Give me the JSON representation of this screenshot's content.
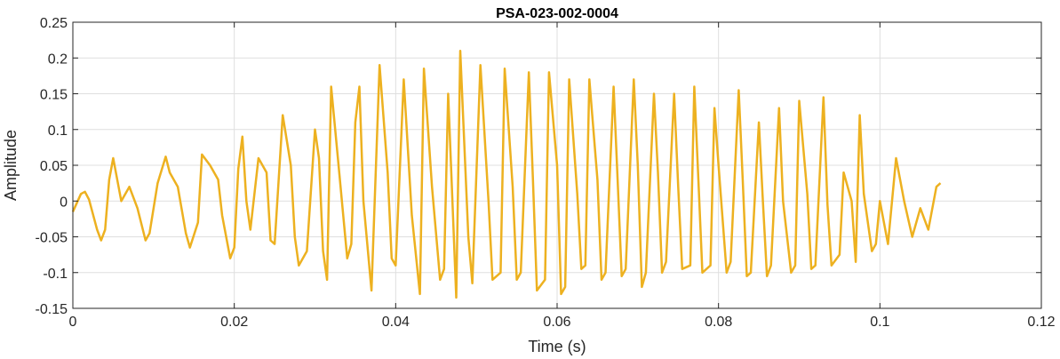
{
  "chart_data": {
    "type": "line",
    "title": "PSA-023-002-0004",
    "xlabel": "Time (s)",
    "ylabel": "Amplitude",
    "xlim": [
      0,
      0.12
    ],
    "ylim": [
      -0.15,
      0.25
    ],
    "grid": true,
    "xticks": [
      0,
      0.02,
      0.04,
      0.06,
      0.08,
      0.1,
      0.12
    ],
    "xtick_labels": [
      "0",
      "0.02",
      "0.04",
      "0.06",
      "0.08",
      "0.1",
      "0.12"
    ],
    "yticks": [
      -0.15,
      -0.1,
      -0.05,
      0,
      0.05,
      0.1,
      0.15,
      0.2,
      0.25
    ],
    "ytick_labels": [
      "-0.15",
      "-0.1",
      "-0.05",
      "0",
      "0.05",
      "0.1",
      "0.15",
      "0.2",
      "0.25"
    ],
    "series": [
      {
        "color": "#EDB120",
        "x": [
          0,
          0.001,
          0.0015,
          0.002,
          0.003,
          0.0035,
          0.004,
          0.0045,
          0.005,
          0.006,
          0.007,
          0.008,
          0.009,
          0.0095,
          0.0105,
          0.0115,
          0.012,
          0.013,
          0.014,
          0.0145,
          0.0155,
          0.016,
          0.017,
          0.018,
          0.0185,
          0.0195,
          0.02,
          0.0205,
          0.021,
          0.0215,
          0.022,
          0.023,
          0.024,
          0.0245,
          0.025,
          0.026,
          0.027,
          0.0275,
          0.028,
          0.029,
          0.03,
          0.0305,
          0.031,
          0.0315,
          0.032,
          0.033,
          0.034,
          0.0345,
          0.035,
          0.0355,
          0.036,
          0.037,
          0.038,
          0.039,
          0.0395,
          0.04,
          0.041,
          0.042,
          0.043,
          0.0435,
          0.0445,
          0.0455,
          0.046,
          0.0465,
          0.0475,
          0.048,
          0.049,
          0.0495,
          0.0505,
          0.0515,
          0.052,
          0.053,
          0.0535,
          0.0545,
          0.055,
          0.0555,
          0.0565,
          0.057,
          0.0575,
          0.0585,
          0.059,
          0.06,
          0.0605,
          0.061,
          0.0615,
          0.0625,
          0.063,
          0.0635,
          0.064,
          0.065,
          0.0655,
          0.066,
          0.067,
          0.0675,
          0.068,
          0.0685,
          0.0695,
          0.07,
          0.0705,
          0.071,
          0.072,
          0.0725,
          0.073,
          0.0735,
          0.0745,
          0.075,
          0.0755,
          0.0765,
          0.077,
          0.0775,
          0.078,
          0.079,
          0.0795,
          0.08,
          0.081,
          0.0815,
          0.0825,
          0.083,
          0.0835,
          0.084,
          0.085,
          0.0855,
          0.086,
          0.0865,
          0.0875,
          0.088,
          0.089,
          0.0895,
          0.09,
          0.091,
          0.0915,
          0.092,
          0.093,
          0.0935,
          0.094,
          0.095,
          0.0955,
          0.0965,
          0.097,
          0.0975,
          0.098,
          0.099,
          0.0995,
          0.1,
          0.101,
          0.102,
          0.103,
          0.104,
          0.105,
          0.106,
          0.107,
          0.1075
        ],
        "y": [
          -0.015,
          0.01,
          0.013,
          0.002,
          -0.04,
          -0.055,
          -0.04,
          0.03,
          0.06,
          0.0,
          0.02,
          -0.01,
          -0.055,
          -0.045,
          0.025,
          0.062,
          0.04,
          0.02,
          -0.045,
          -0.065,
          -0.03,
          0.065,
          0.05,
          0.03,
          -0.02,
          -0.08,
          -0.065,
          0.045,
          0.09,
          0.0,
          -0.04,
          0.06,
          0.04,
          -0.055,
          -0.06,
          0.12,
          0.05,
          -0.05,
          -0.09,
          -0.07,
          0.1,
          0.06,
          -0.07,
          -0.11,
          0.16,
          0.04,
          -0.08,
          -0.06,
          0.11,
          0.16,
          0.0,
          -0.125,
          0.19,
          0.04,
          -0.08,
          -0.09,
          0.17,
          -0.02,
          -0.13,
          0.185,
          0.02,
          -0.11,
          -0.095,
          0.15,
          -0.135,
          0.21,
          -0.05,
          -0.115,
          0.19,
          0.0,
          -0.11,
          -0.1,
          0.185,
          0.02,
          -0.11,
          -0.1,
          0.18,
          0.03,
          -0.125,
          -0.11,
          0.18,
          0.05,
          -0.13,
          -0.12,
          0.17,
          0.01,
          -0.095,
          -0.09,
          0.17,
          0.03,
          -0.11,
          -0.1,
          0.16,
          0.03,
          -0.105,
          -0.095,
          0.17,
          0.05,
          -0.12,
          -0.1,
          0.15,
          0.04,
          -0.1,
          -0.085,
          0.15,
          0.02,
          -0.095,
          -0.09,
          0.16,
          0.03,
          -0.1,
          -0.09,
          0.13,
          0.05,
          -0.1,
          -0.085,
          0.155,
          0.03,
          -0.105,
          -0.1,
          0.11,
          0.0,
          -0.105,
          -0.09,
          0.13,
          0.0,
          -0.1,
          -0.09,
          0.14,
          0.01,
          -0.095,
          -0.09,
          0.145,
          -0.005,
          -0.09,
          -0.075,
          0.04,
          0.0,
          -0.085,
          0.12,
          0.01,
          -0.07,
          -0.06,
          0.0,
          -0.06,
          0.06,
          0.0,
          -0.05,
          -0.01,
          -0.04,
          0.02,
          0.025
        ]
      }
    ]
  }
}
